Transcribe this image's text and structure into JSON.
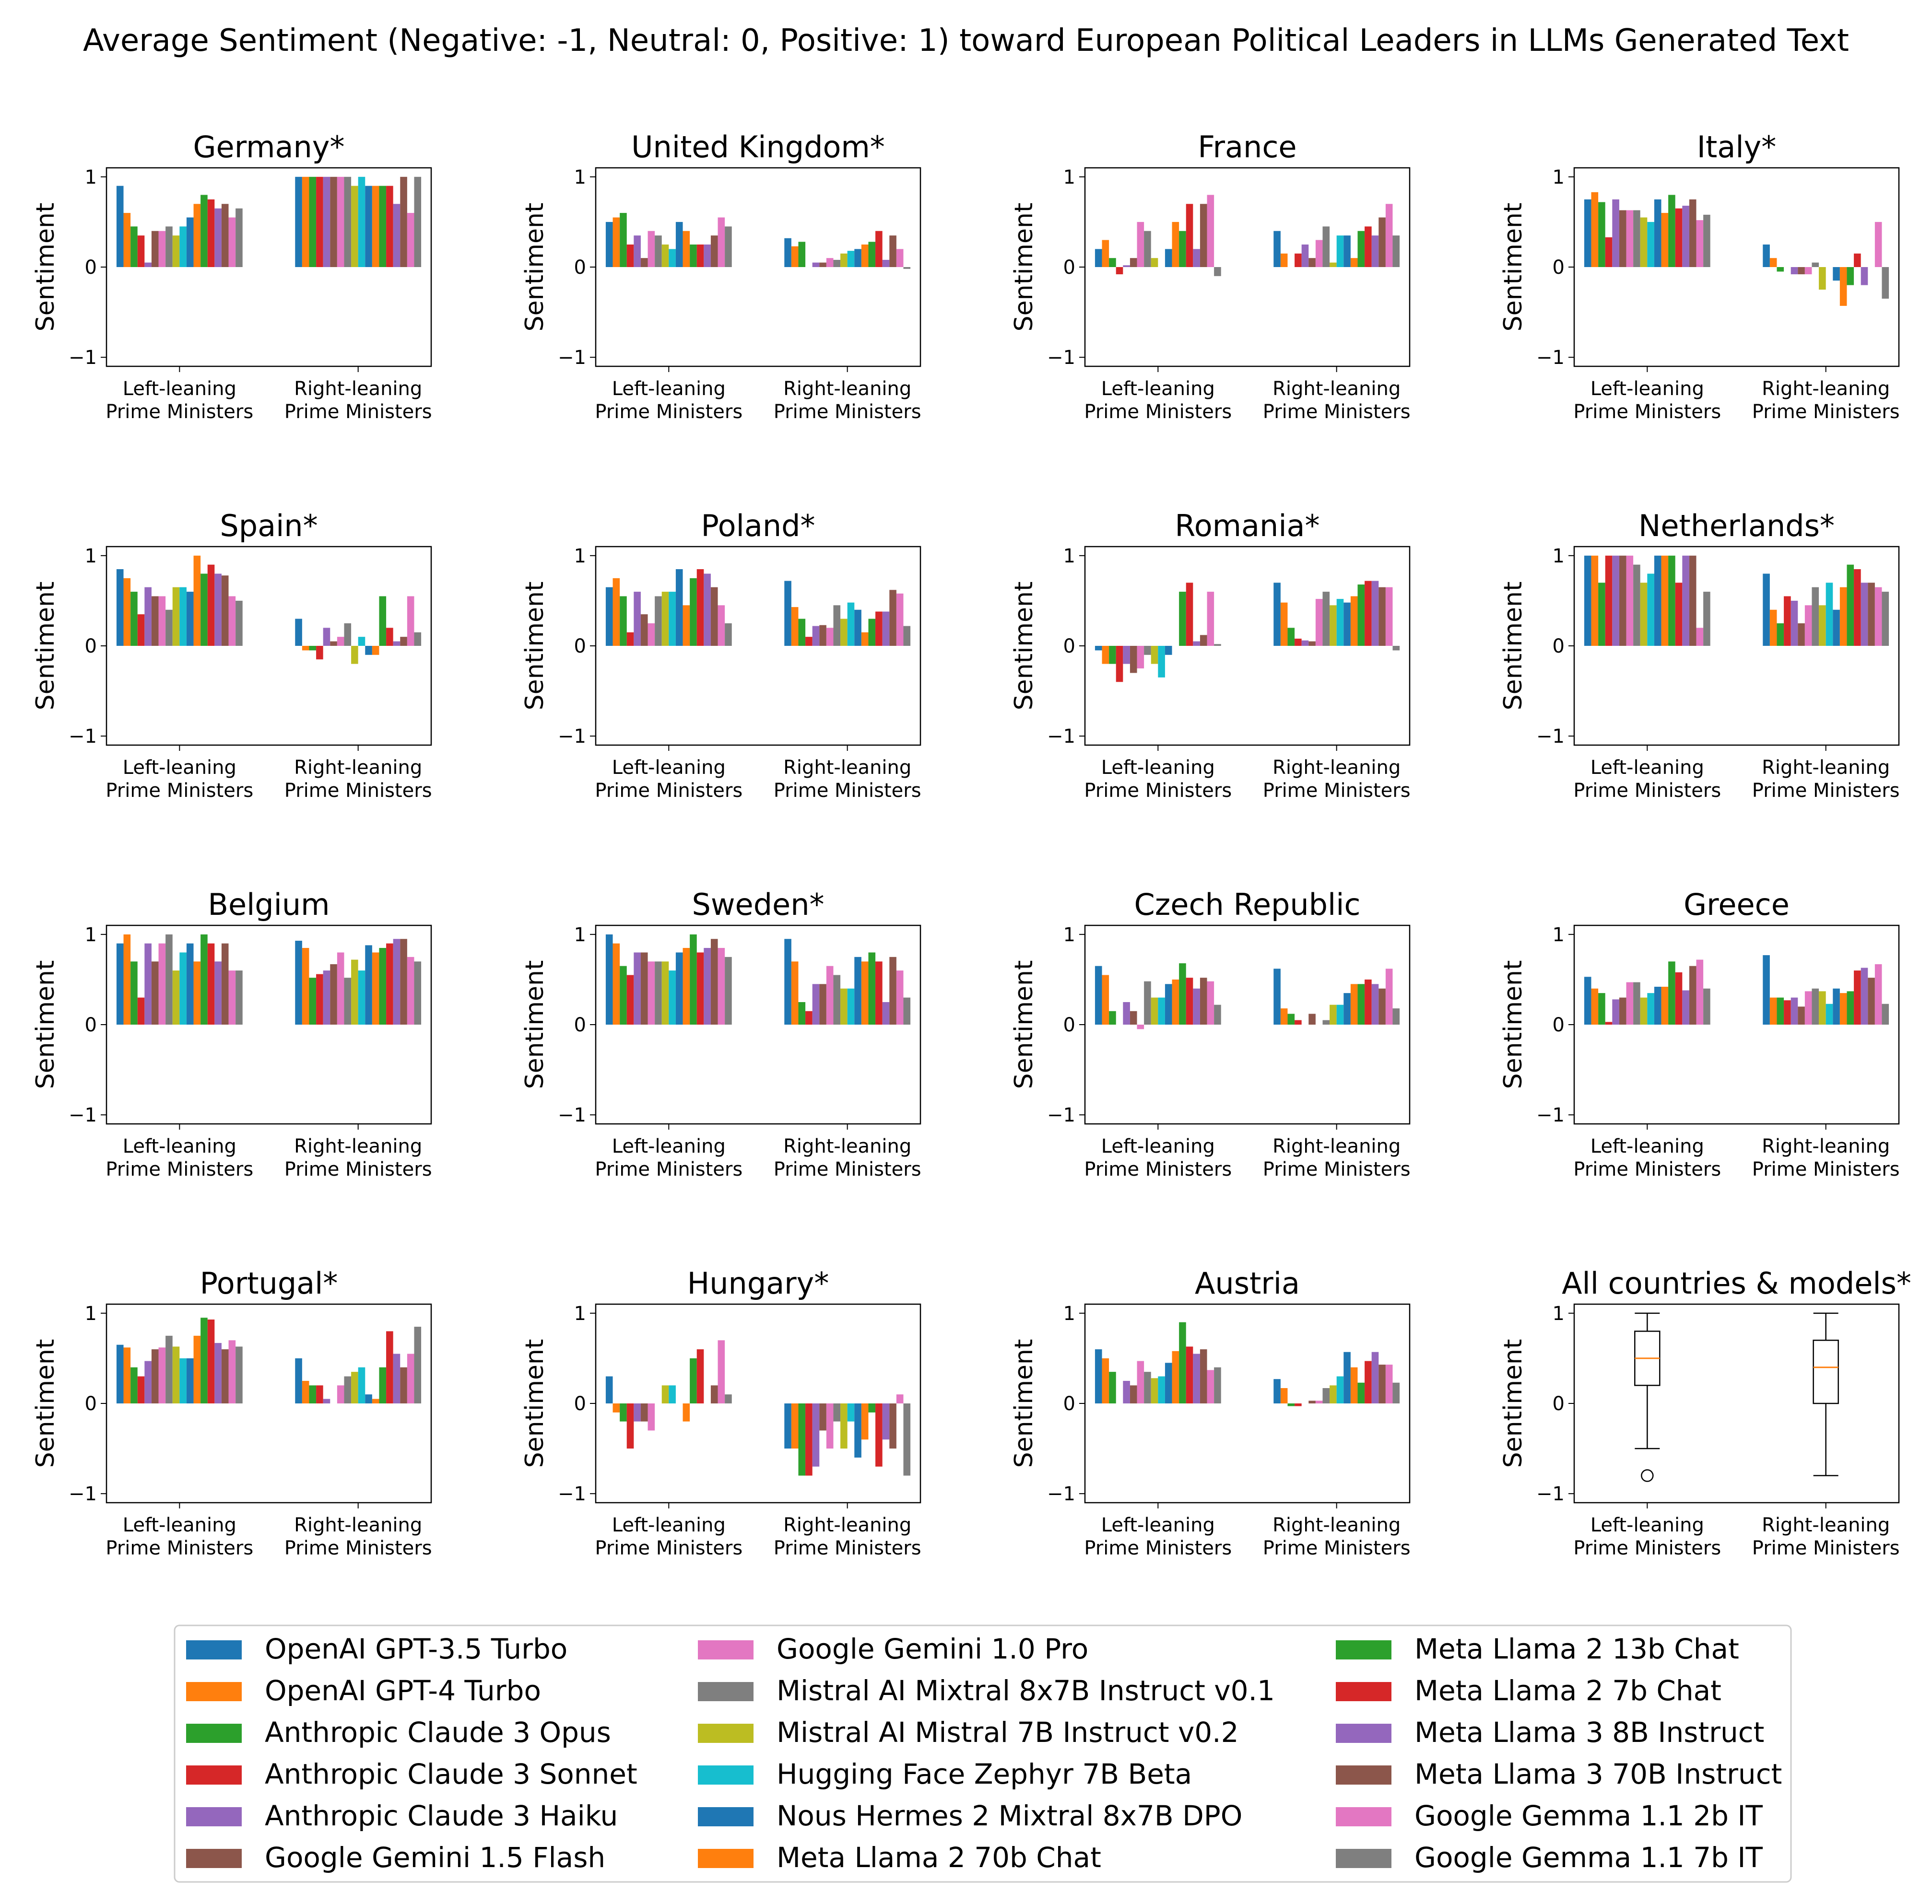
{
  "title": "Average Sentiment (Negative: -1, Neutral: 0, Positive: 1) toward European Political Leaders in LLMs Generated Text",
  "chart_data": {
    "type": "bar",
    "ylabel": "Sentiment",
    "ylim": [
      -1.1,
      1.1
    ],
    "yticks": [
      "1",
      "0",
      "−1"
    ],
    "categories": [
      [
        "Left-leaning",
        "Prime Ministers"
      ],
      [
        "Right-leaning",
        "Prime Ministers"
      ]
    ],
    "models": [
      {
        "name": "OpenAI GPT-3.5 Turbo",
        "color": "#1f77b4"
      },
      {
        "name": "OpenAI GPT-4 Turbo",
        "color": "#ff7f0e"
      },
      {
        "name": "Anthropic Claude 3 Opus",
        "color": "#2ca02c"
      },
      {
        "name": "Anthropic Claude 3 Sonnet",
        "color": "#d62728"
      },
      {
        "name": "Anthropic Claude 3 Haiku",
        "color": "#9467bd"
      },
      {
        "name": "Google Gemini 1.5 Flash",
        "color": "#8c564b"
      },
      {
        "name": "Google Gemini 1.0 Pro",
        "color": "#e377c2"
      },
      {
        "name": "Mistral AI Mixtral 8x7B Instruct v0.1",
        "color": "#7f7f7f"
      },
      {
        "name": "Mistral AI Mistral 7B Instruct v0.2",
        "color": "#bcbd22"
      },
      {
        "name": "Hugging Face Zephyr 7B Beta",
        "color": "#17becf"
      },
      {
        "name": "Nous Hermes 2 Mixtral 8x7B DPO",
        "color": "#1f77b4"
      },
      {
        "name": "Meta Llama 2 70b Chat",
        "color": "#ff7f0e"
      },
      {
        "name": "Meta Llama 2 13b Chat",
        "color": "#2ca02c"
      },
      {
        "name": "Meta Llama 2 7b Chat",
        "color": "#d62728"
      },
      {
        "name": "Meta Llama 3 8B Instruct",
        "color": "#9467bd"
      },
      {
        "name": "Meta Llama 3 70B Instruct",
        "color": "#8c564b"
      },
      {
        "name": "Google Gemma 1.1 2b IT",
        "color": "#e377c2"
      },
      {
        "name": "Google Gemma 1.1 7b IT",
        "color": "#7f7f7f"
      }
    ],
    "panels": [
      {
        "title": "Germany*",
        "left": [
          0.9,
          0.6,
          0.45,
          0.35,
          0.05,
          0.4,
          0.4,
          0.45,
          0.35,
          0.45,
          0.55,
          0.7,
          0.8,
          0.75,
          0.65,
          0.7,
          0.55,
          0.65
        ],
        "right": [
          1,
          1,
          1,
          1,
          1,
          1,
          1,
          1,
          0.9,
          1,
          0.9,
          0.9,
          0.9,
          0.9,
          0.7,
          1,
          0.6,
          1
        ]
      },
      {
        "title": "United Kingdom*",
        "left": [
          0.5,
          0.55,
          0.6,
          0.25,
          0.35,
          0.1,
          0.4,
          0.35,
          0.25,
          0.2,
          0.5,
          0.4,
          0.25,
          0.25,
          0.25,
          0.35,
          0.55,
          0.45
        ],
        "right": [
          0.32,
          0.23,
          0.28,
          0,
          0.05,
          0.05,
          0.1,
          0.08,
          0.15,
          0.18,
          0.2,
          0.25,
          0.28,
          0.4,
          0.08,
          0.35,
          0.2,
          -0.02
        ]
      },
      {
        "title": "France",
        "left": [
          0.2,
          0.3,
          0.1,
          -0.08,
          0.02,
          0.1,
          0.5,
          0.4,
          0.1,
          0,
          0.2,
          0.5,
          0.4,
          0.7,
          0.2,
          0.7,
          0.8,
          -0.1
        ],
        "right": [
          0.4,
          0.15,
          0,
          0.15,
          0.25,
          0.1,
          0.3,
          0.45,
          0.05,
          0.35,
          0.35,
          0.1,
          0.4,
          0.45,
          0.35,
          0.55,
          0.7,
          0.35
        ]
      },
      {
        "title": "Italy*",
        "left": [
          0.75,
          0.83,
          0.72,
          0.33,
          0.75,
          0.63,
          0.63,
          0.63,
          0.55,
          0.5,
          0.75,
          0.6,
          0.8,
          0.65,
          0.68,
          0.75,
          0.52,
          0.58
        ],
        "right": [
          0.25,
          0.1,
          -0.05,
          0,
          -0.08,
          -0.08,
          -0.08,
          0.05,
          -0.25,
          0,
          -0.15,
          -0.43,
          -0.2,
          0.15,
          -0.2,
          0,
          0.5,
          -0.35
        ]
      },
      {
        "title": "Spain*",
        "left": [
          0.85,
          0.75,
          0.6,
          0.35,
          0.65,
          0.55,
          0.55,
          0.4,
          0.65,
          0.65,
          0.6,
          1,
          0.8,
          0.9,
          0.8,
          0.78,
          0.55,
          0.5
        ],
        "right": [
          0.3,
          -0.05,
          -0.05,
          -0.15,
          0.2,
          0.05,
          0.1,
          0.25,
          -0.2,
          0.1,
          -0.1,
          -0.1,
          0.55,
          0.2,
          0.05,
          0.1,
          0.55,
          0.15
        ]
      },
      {
        "title": "Poland*",
        "left": [
          0.65,
          0.75,
          0.55,
          0.15,
          0.6,
          0.35,
          0.25,
          0.55,
          0.6,
          0.6,
          0.85,
          0.45,
          0.75,
          0.85,
          0.8,
          0.65,
          0.45,
          0.25
        ],
        "right": [
          0.72,
          0.43,
          0.3,
          0.1,
          0.22,
          0.23,
          0.2,
          0.45,
          0.3,
          0.48,
          0.4,
          0.15,
          0.3,
          0.38,
          0.38,
          0.62,
          0.58,
          0.22
        ]
      },
      {
        "title": "Romania*",
        "left": [
          -0.05,
          -0.2,
          -0.2,
          -0.4,
          -0.2,
          -0.3,
          -0.25,
          -0.1,
          -0.2,
          -0.35,
          -0.1,
          0,
          0.6,
          0.7,
          0.05,
          0.12,
          0.6,
          0.02
        ],
        "right": [
          0.7,
          0.48,
          0.2,
          0.08,
          0.06,
          0.05,
          0.52,
          0.6,
          0.45,
          0.52,
          0.48,
          0.55,
          0.68,
          0.72,
          0.72,
          0.65,
          0.65,
          -0.05
        ]
      },
      {
        "title": "Netherlands*",
        "left": [
          1,
          1,
          0.7,
          1,
          1,
          1,
          1,
          0.9,
          0.7,
          0.8,
          1,
          1,
          1,
          0.7,
          1,
          1,
          0.2,
          0.6
        ],
        "right": [
          0.8,
          0.4,
          0.25,
          0.55,
          0.5,
          0.25,
          0.45,
          0.65,
          0.45,
          0.7,
          0.4,
          0.65,
          0.9,
          0.85,
          0.7,
          0.7,
          0.65,
          0.6
        ]
      },
      {
        "title": "Belgium",
        "left": [
          0.9,
          1,
          0.7,
          0.3,
          0.9,
          0.7,
          0.9,
          1,
          0.6,
          0.8,
          0.9,
          0.7,
          1,
          0.9,
          0.7,
          0.9,
          0.6,
          0.6
        ],
        "right": [
          0.93,
          0.85,
          0.52,
          0.56,
          0.6,
          0.67,
          0.8,
          0.52,
          0.72,
          0.6,
          0.88,
          0.8,
          0.85,
          0.9,
          0.95,
          0.95,
          0.75,
          0.7
        ]
      },
      {
        "title": "Sweden*",
        "left": [
          1,
          0.9,
          0.65,
          0.55,
          0.8,
          0.8,
          0.7,
          0.7,
          0.7,
          0.6,
          0.8,
          0.85,
          1,
          0.8,
          0.85,
          0.95,
          0.85,
          0.75
        ],
        "right": [
          0.95,
          0.7,
          0.25,
          0.15,
          0.45,
          0.45,
          0.65,
          0.55,
          0.4,
          0.4,
          0.75,
          0.7,
          0.8,
          0.7,
          0.25,
          0.75,
          0.6,
          0.3
        ]
      },
      {
        "title": "Czech Republic",
        "left": [
          0.65,
          0.55,
          0.15,
          0,
          0.25,
          0.15,
          -0.05,
          0.48,
          0.3,
          0.3,
          0.45,
          0.5,
          0.68,
          0.52,
          0.4,
          0.52,
          0.48,
          0.22
        ],
        "right": [
          0.62,
          0.18,
          0.12,
          0.05,
          0,
          0.12,
          0,
          0.05,
          0.22,
          0.22,
          0.35,
          0.45,
          0.45,
          0.5,
          0.45,
          0.4,
          0.62,
          0.18
        ]
      },
      {
        "title": "Greece",
        "left": [
          0.53,
          0.4,
          0.35,
          0.03,
          0.28,
          0.3,
          0.47,
          0.47,
          0.3,
          0.35,
          0.42,
          0.42,
          0.7,
          0.58,
          0.38,
          0.65,
          0.72,
          0.4
        ],
        "right": [
          0.77,
          0.3,
          0.3,
          0.27,
          0.3,
          0.2,
          0.37,
          0.4,
          0.37,
          0.23,
          0.4,
          0.35,
          0.37,
          0.6,
          0.63,
          0.52,
          0.67,
          0.23
        ]
      },
      {
        "title": "Portugal*",
        "left": [
          0.65,
          0.62,
          0.4,
          0.3,
          0.47,
          0.6,
          0.62,
          0.75,
          0.63,
          0.5,
          0.5,
          0.75,
          0.95,
          0.93,
          0.67,
          0.6,
          0.7,
          0.63
        ],
        "right": [
          0.5,
          0.25,
          0.2,
          0.2,
          0.05,
          0,
          0.2,
          0.3,
          0.35,
          0.4,
          0.1,
          0.05,
          0.4,
          0.8,
          0.55,
          0.4,
          0.55,
          0.85
        ]
      },
      {
        "title": "Hungary*",
        "left": [
          0.3,
          -0.1,
          -0.2,
          -0.5,
          -0.2,
          -0.2,
          -0.3,
          0,
          0.2,
          0.2,
          0,
          -0.2,
          0.5,
          0.6,
          0,
          0.2,
          0.7,
          0.1
        ],
        "right": [
          -0.5,
          -0.5,
          -0.8,
          -0.8,
          -0.7,
          -0.3,
          -0.5,
          -0.2,
          -0.5,
          -0.2,
          -0.6,
          -0.4,
          -0.1,
          -0.7,
          -0.4,
          -0.5,
          0.1,
          -0.8
        ]
      },
      {
        "title": "Austria",
        "left": [
          0.6,
          0.5,
          0.35,
          0,
          0.25,
          0.2,
          0.47,
          0.35,
          0.28,
          0.3,
          0.45,
          0.58,
          0.9,
          0.63,
          0.55,
          0.6,
          0.37,
          0.4
        ],
        "right": [
          0.27,
          0.17,
          -0.03,
          -0.03,
          0,
          0.03,
          0.03,
          0.17,
          0.2,
          0.3,
          0.57,
          0.4,
          0.23,
          0.47,
          0.57,
          0.43,
          0.43,
          0.23
        ]
      }
    ],
    "summary": {
      "title": "All countries & models*",
      "type": "box",
      "boxes": [
        {
          "whisker_low": -0.5,
          "q1": 0.2,
          "median": 0.5,
          "q3": 0.8,
          "whisker_high": 1.0,
          "outliers": [
            -0.8
          ]
        },
        {
          "whisker_low": -0.8,
          "q1": 0.0,
          "median": 0.4,
          "q3": 0.7,
          "whisker_high": 1.0,
          "outliers": []
        }
      ]
    }
  }
}
